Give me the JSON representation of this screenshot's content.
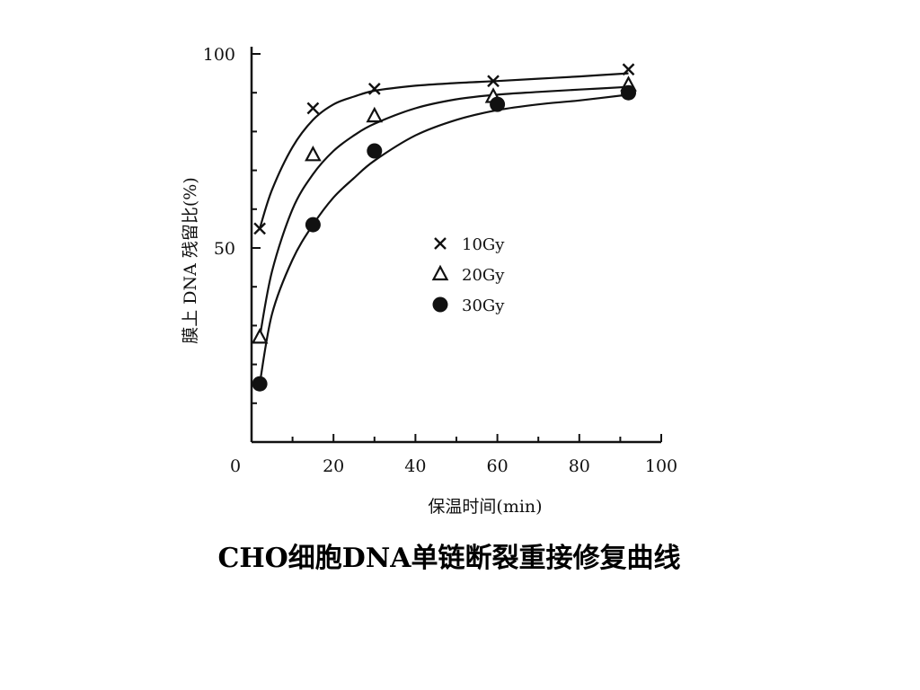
{
  "caption": "CHO细胞DNA单链断裂重接修复曲线",
  "chart_data": {
    "type": "scatter",
    "xlabel": "保温时间(min)",
    "ylabel": "膜上 DNA 残留比(%)",
    "xlim": [
      0,
      100
    ],
    "ylim": [
      0,
      100
    ],
    "x_ticks": [
      0,
      20,
      40,
      60,
      80,
      100
    ],
    "y_ticks": [
      50,
      100
    ],
    "grid": false,
    "legend_position": "center-right",
    "series": [
      {
        "name": "10Gy",
        "marker": "x",
        "points": [
          [
            2,
            55
          ],
          [
            15,
            86
          ],
          [
            30,
            91
          ],
          [
            59,
            93
          ],
          [
            92,
            96
          ]
        ],
        "curve": [
          [
            2,
            55
          ],
          [
            5,
            65
          ],
          [
            10,
            76
          ],
          [
            15,
            83
          ],
          [
            20,
            87
          ],
          [
            25,
            89
          ],
          [
            30,
            90.5
          ],
          [
            40,
            91.8
          ],
          [
            50,
            92.5
          ],
          [
            60,
            93
          ],
          [
            70,
            93.6
          ],
          [
            80,
            94.2
          ],
          [
            92,
            95
          ]
        ]
      },
      {
        "name": "20Gy",
        "marker": "triangle",
        "points": [
          [
            2,
            27
          ],
          [
            15,
            74
          ],
          [
            30,
            84
          ],
          [
            59,
            89
          ],
          [
            92,
            92
          ]
        ],
        "curve": [
          [
            2,
            27
          ],
          [
            5,
            44
          ],
          [
            10,
            60
          ],
          [
            15,
            69
          ],
          [
            20,
            75
          ],
          [
            25,
            79
          ],
          [
            30,
            82
          ],
          [
            40,
            86
          ],
          [
            50,
            88.3
          ],
          [
            60,
            89.5
          ],
          [
            70,
            90.2
          ],
          [
            80,
            90.8
          ],
          [
            92,
            91.5
          ]
        ]
      },
      {
        "name": "30Gy",
        "marker": "circle",
        "points": [
          [
            2,
            15
          ],
          [
            15,
            56
          ],
          [
            30,
            75
          ],
          [
            60,
            87
          ],
          [
            92,
            90
          ]
        ],
        "curve": [
          [
            2,
            15
          ],
          [
            5,
            33
          ],
          [
            10,
            47
          ],
          [
            15,
            56
          ],
          [
            20,
            63
          ],
          [
            25,
            68
          ],
          [
            30,
            72.5
          ],
          [
            40,
            79
          ],
          [
            50,
            83
          ],
          [
            60,
            85.5
          ],
          [
            70,
            87
          ],
          [
            80,
            88
          ],
          [
            92,
            89.5
          ]
        ]
      }
    ]
  }
}
